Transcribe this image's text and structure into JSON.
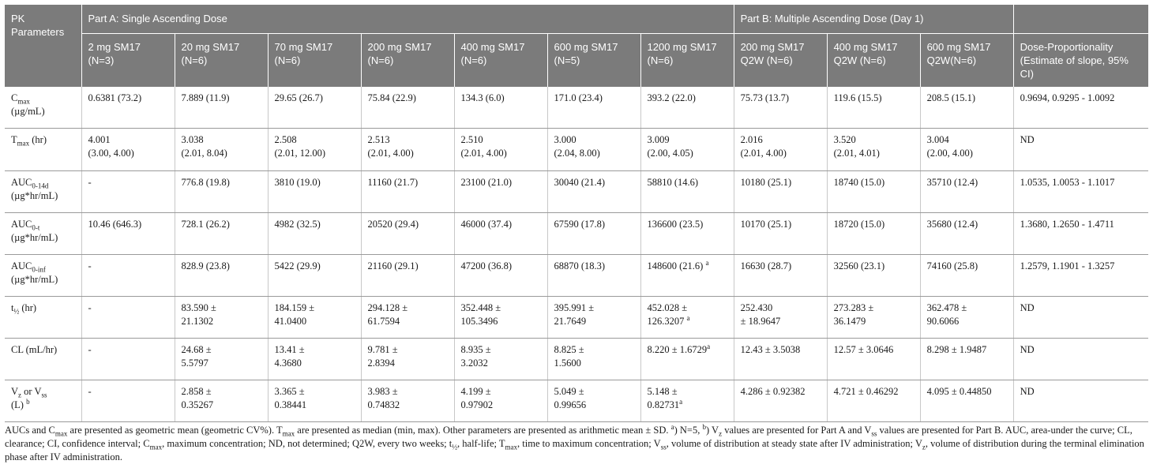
{
  "header": {
    "pk_parameters": "PK Parameters",
    "part_a": "Part A: Single Ascending Dose",
    "part_b": "Part B: Multiple Ascending Dose (Day 1)",
    "columns": [
      "2 mg SM17 (N=3)",
      "20 mg SM17 (N=6)",
      "70 mg SM17 (N=6)",
      "200 mg SM17 (N=6)",
      "400 mg SM17 (N=6)",
      "600 mg SM17 (N=5)",
      "1200 mg SM17 (N=6)",
      "200 mg SM17 Q2W (N=6)",
      "400 mg SM17 Q2W (N=6)",
      "600 mg SM17 Q2W(N=6)",
      "Dose-Proportionality (Estimate of slope, 95% CI)"
    ]
  },
  "rows": [
    {
      "param_html": "C<sub>max</sub><br>(µg/mL)",
      "values": [
        "0.6381 (73.2)",
        "7.889 (11.9)",
        "29.65 (26.7)",
        "75.84 (22.9)",
        "134.3 (6.0)",
        "171.0 (23.4)",
        "393.2 (22.0)",
        "75.73 (13.7)",
        "119.6 (15.5)",
        "208.5 (15.1)",
        "0.9694, 0.9295 - 1.0092"
      ]
    },
    {
      "param_html": "T<sub>max</sub> (hr)",
      "values": [
        "4.001\n(3.00, 4.00)",
        "3.038\n(2.01, 8.04)",
        "2.508\n(2.01, 12.00)",
        "2.513\n(2.01, 4.00)",
        "2.510\n(2.01, 4.00)",
        "3.000\n(2.04, 8.00)",
        "3.009\n(2.00, 4.05)",
        "2.016\n(2.01, 4.00)",
        "3.520\n(2.01, 4.01)",
        "3.004\n(2.00, 4.00)",
        "ND"
      ]
    },
    {
      "param_html": "AUC<sub>0-14d</sub><br>(µg*hr/mL)",
      "values": [
        "-",
        "776.8 (19.8)",
        "3810 (19.0)",
        "11160 (21.7)",
        "23100 (21.0)",
        "30040 (21.4)",
        "58810 (14.6)",
        "10180 (25.1)",
        "18740 (15.0)",
        "35710 (12.4)",
        "1.0535, 1.0053 - 1.1017"
      ]
    },
    {
      "param_html": "AUC<sub>0-t</sub><br>(µg*hr/mL)",
      "values": [
        "10.46 (646.3)",
        "728.1 (26.2)",
        "4982 (32.5)",
        "20520 (29.4)",
        "46000 (37.4)",
        "67590 (17.8)",
        "136600 (23.5)",
        "10170 (25.1)",
        "18720 (15.0)",
        "35680 (12.4)",
        "1.3680, 1.2650 - 1.4711"
      ]
    },
    {
      "param_html": "AUC<sub>0-inf</sub><br>(µg*hr/mL)",
      "values": [
        "-",
        "828.9 (23.8)",
        "5422 (29.9)",
        "21160 (29.1)",
        "47200 (36.8)",
        "68870 (18.3)",
        "148600 (21.6) ",
        "16630 (28.7)",
        "32560 (23.1)",
        "74160 (25.8)",
        "1.2579, 1.1901 - 1.3257"
      ],
      "sup": {
        "6": "a"
      }
    },
    {
      "param_html": "t<sub>½</sub> (hr)",
      "values": [
        "-",
        "83.590 ±\n21.1302",
        "184.159 ±\n41.0400",
        "294.128 ±\n61.7594",
        "352.448 ±\n105.3496",
        "395.991 ±\n21.7649",
        "452.028 ±\n126.3207 ",
        "252.430\n± 18.9647",
        "273.283 ±\n36.1479",
        "362.478 ±\n90.6066",
        "ND"
      ],
      "sup": {
        "6": "a"
      }
    },
    {
      "param_html": "CL (mL/hr)",
      "values": [
        "-",
        "24.68 ±\n5.5797",
        "13.41 ±\n4.3680",
        "9.781 ±\n2.8394",
        "8.935 ±\n3.2032",
        "8.825 ±\n1.5600",
        "8.220 ± 1.6729",
        "12.43 ± 3.5038",
        "12.57 ± 3.0646",
        "8.298 ± 1.9487",
        "ND"
      ],
      "sup": {
        "6": "a"
      }
    },
    {
      "param_html": "V<sub>z</sub> or V<sub>ss</sub><br>(L) <sup>b</sup>",
      "values": [
        "-",
        "2.858 ±\n0.35267",
        "3.365 ±\n0.38441",
        "3.983 ±\n0.74832",
        "4.199 ±\n0.97902",
        "5.049 ±\n0.99656",
        "5.148 ±\n0.82731",
        "4.286 ± 0.92382",
        "4.721 ± 0.46292",
        "4.095 ± 0.44850",
        "ND"
      ],
      "sup": {
        "6": "a"
      }
    }
  ],
  "footnote_html": "AUCs and C<sub>max</sub> are presented as geometric mean (geometric CV%). T<sub>max</sub> are presented as median (min, max). Other parameters are presented as arithmetic mean ± SD. <sup>a</sup>) N=5, <sup>b</sup>) V<sub>z</sub> values are presented for Part A and V<sub>ss</sub> values are presented for Part B. AUC, area-under the curve; CL, clearance; CI, confidence interval; C<sub>max</sub>, maximum concentration; ND, not determined; Q2W, every two weeks; t<sub>½</sub>, half-life; T<sub>max</sub>, time to maximum concentration; V<sub>ss</sub>, volume of distribution at steady state after IV administration; V<sub>z</sub>, volume of distribution during the terminal elimination phase after IV administration."
}
